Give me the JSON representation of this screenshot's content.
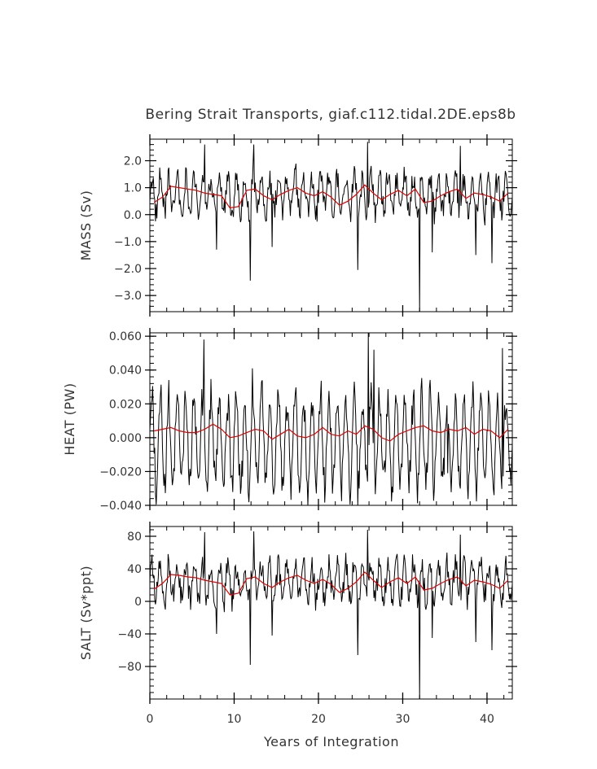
{
  "chart_data": {
    "type": "line",
    "title": "Bering Strait Transports, giaf.c112.tidal.2DE.eps8b",
    "xlabel": "Years of Integration",
    "xlim": [
      0,
      43
    ],
    "x_ticks": [
      0,
      10,
      20,
      30,
      40
    ],
    "x_tick_labels": [
      "0",
      "10",
      "20",
      "30",
      "40"
    ],
    "colors": {
      "monthly": "#000000",
      "annual": "#e00000"
    },
    "panels": [
      {
        "id": "mass",
        "ylabel": "MASS (Sv)",
        "ylim": [
          -3.6,
          2.8
        ],
        "y_ticks": [
          2.0,
          1.0,
          0.0,
          -1.0,
          -2.0,
          -3.0
        ],
        "y_tick_labels": [
          "2.0",
          "1.0",
          "0.0",
          "−1.0",
          "−2.0",
          "−3.0"
        ],
        "series": [
          {
            "key": "monthly",
            "base": 0.75,
            "seasonal": 0.8,
            "noise": 0.45,
            "spikes": [
              [
                6.5,
                2.6
              ],
              [
                7.9,
                -1.3
              ],
              [
                11.9,
                -2.45
              ],
              [
                12.3,
                2.6
              ],
              [
                14.5,
                -1.2
              ],
              [
                24.7,
                -2.05
              ],
              [
                25.8,
                2.7
              ],
              [
                32.0,
                -3.6
              ],
              [
                33.5,
                -1.4
              ],
              [
                36.8,
                2.55
              ],
              [
                38.7,
                -1.5
              ],
              [
                40.6,
                -1.8
              ]
            ]
          },
          {
            "key": "annual",
            "values": [
              0.45,
              0.65,
              1.05,
              1.0,
              0.95,
              0.9,
              0.8,
              0.75,
              0.7,
              0.25,
              0.3,
              0.9,
              0.95,
              0.7,
              0.55,
              0.75,
              0.9,
              1.0,
              0.8,
              0.7,
              0.85,
              0.65,
              0.35,
              0.5,
              0.75,
              1.1,
              0.8,
              0.55,
              0.75,
              0.9,
              0.7,
              0.95,
              0.45,
              0.5,
              0.7,
              0.85,
              0.95,
              0.6,
              0.8,
              0.75,
              0.65,
              0.5,
              0.8
            ]
          }
        ]
      },
      {
        "id": "heat",
        "ylabel": "HEAT (PW)",
        "ylim": [
          -0.04,
          0.062
        ],
        "y_ticks": [
          0.06,
          0.04,
          0.02,
          0.0,
          -0.02,
          -0.04
        ],
        "y_tick_labels": [
          "0.060",
          "0.040",
          "0.020",
          "0.000",
          "−0.020",
          "−0.040"
        ],
        "series": [
          {
            "key": "monthly",
            "base": -0.002,
            "seasonal": 0.032,
            "noise": 0.009,
            "spikes": [
              [
                6.4,
                0.058
              ],
              [
                11.0,
                -0.023
              ],
              [
                12.2,
                0.041
              ],
              [
                14.6,
                -0.028
              ],
              [
                24.7,
                -0.04
              ],
              [
                25.9,
                0.062
              ],
              [
                26.6,
                0.052
              ],
              [
                35.3,
                -0.021
              ],
              [
                40.8,
                -0.034
              ],
              [
                41.8,
                0.053
              ]
            ]
          },
          {
            "key": "annual",
            "values": [
              0.004,
              0.005,
              0.006,
              0.004,
              0.003,
              0.003,
              0.005,
              0.008,
              0.005,
              0.0,
              0.001,
              0.003,
              0.005,
              0.004,
              -0.001,
              0.002,
              0.005,
              0.001,
              0.0,
              0.002,
              0.006,
              0.002,
              0.001,
              0.004,
              0.002,
              0.007,
              0.005,
              0.0,
              -0.002,
              0.002,
              0.004,
              0.006,
              0.007,
              0.004,
              0.003,
              0.005,
              0.004,
              0.006,
              0.002,
              0.005,
              0.004,
              0.0,
              0.005
            ]
          }
        ]
      },
      {
        "id": "salt",
        "ylabel": "SALT (Sv*ppt)",
        "ylim": [
          -120,
          92
        ],
        "y_ticks": [
          80,
          40,
          0,
          -40,
          -80
        ],
        "y_tick_labels": [
          "80",
          "40",
          "0",
          "−40",
          "−80"
        ],
        "series": [
          {
            "key": "monthly",
            "base": 24,
            "seasonal": 26,
            "noise": 15,
            "spikes": [
              [
                6.5,
                85
              ],
              [
                7.9,
                -40
              ],
              [
                11.9,
                -78
              ],
              [
                12.3,
                86
              ],
              [
                14.5,
                -42
              ],
              [
                24.7,
                -66
              ],
              [
                25.8,
                88
              ],
              [
                32.0,
                -120
              ],
              [
                33.5,
                -45
              ],
              [
                36.8,
                82
              ],
              [
                38.7,
                -50
              ],
              [
                40.6,
                -60
              ]
            ]
          },
          {
            "key": "annual",
            "values": [
              15,
              22,
              33,
              32,
              30,
              29,
              26,
              24,
              22,
              8,
              10,
              28,
              30,
              22,
              17,
              24,
              29,
              32,
              26,
              22,
              27,
              21,
              11,
              16,
              24,
              36,
              26,
              17,
              24,
              29,
              22,
              30,
              14,
              16,
              22,
              27,
              30,
              19,
              26,
              24,
              21,
              16,
              26
            ]
          }
        ]
      }
    ]
  }
}
